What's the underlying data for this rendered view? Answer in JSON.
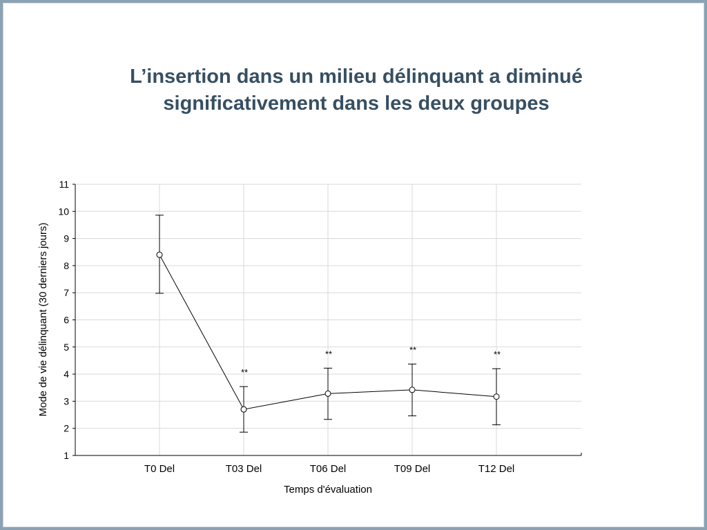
{
  "slide": {
    "title_line1": "L’insertion dans un milieu délinquant a diminué",
    "title_line2": "significativement dans les deux groupes"
  },
  "chart_data": {
    "type": "line",
    "xlabel": "Temps d'évaluation",
    "ylabel": "Mode de vie délinquant (30 derniers jours)",
    "categories": [
      "T0 Del",
      "T03 Del",
      "T06 Del",
      "T09 Del",
      "T12 Del"
    ],
    "series": [
      {
        "values": [
          8.4,
          2.7,
          3.28,
          3.42,
          3.17
        ],
        "error_low": [
          6.98,
          1.86,
          2.33,
          2.46,
          2.13
        ],
        "error_high": [
          9.86,
          3.54,
          4.22,
          4.37,
          4.2
        ],
        "annotations": [
          "",
          "**",
          "**",
          "**",
          "**"
        ]
      }
    ],
    "ylim": [
      1,
      11
    ],
    "yticks": [
      1,
      2,
      3,
      4,
      5,
      6,
      7,
      8,
      9,
      10,
      11
    ],
    "grid": true,
    "marker": "open-circle",
    "colors": {
      "line": "#000000",
      "grid": "#d9d9d9",
      "title": "#374f62",
      "border": "#8aa2b1"
    }
  }
}
